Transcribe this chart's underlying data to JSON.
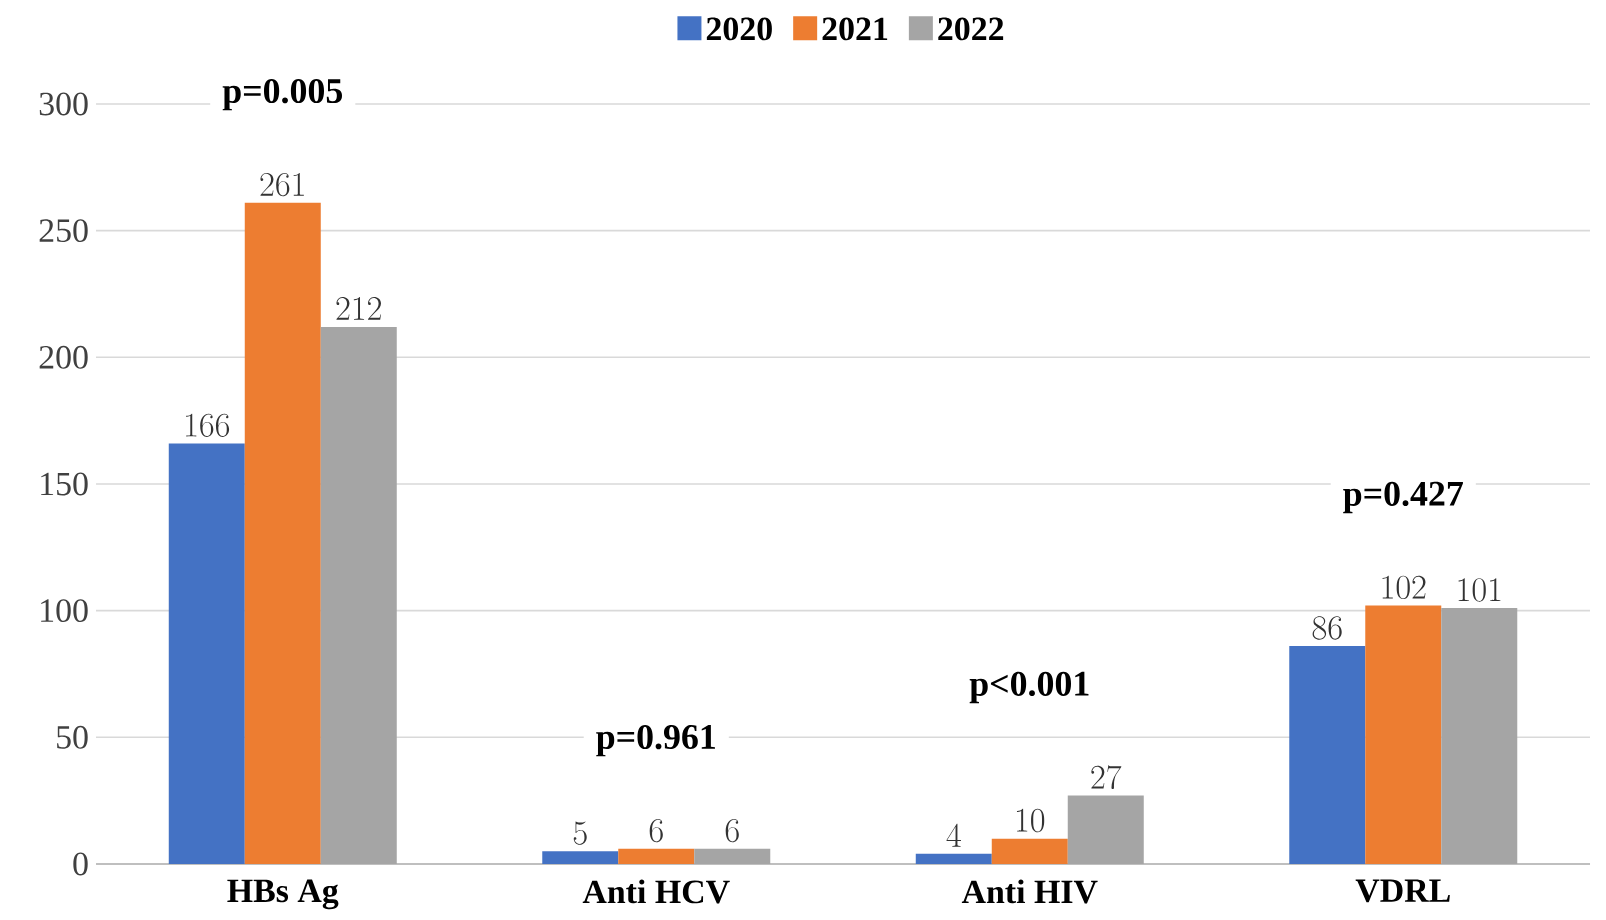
{
  "chart_data": {
    "type": "bar",
    "categories": [
      "HBs Ag",
      "Anti HCV",
      "Anti HIV",
      "VDRL"
    ],
    "series": [
      {
        "name": "2020",
        "color": "#4472c4",
        "values": [
          166,
          5,
          4,
          86
        ]
      },
      {
        "name": "2021",
        "color": "#ed7d31",
        "values": [
          261,
          6,
          10,
          102
        ]
      },
      {
        "name": "2022",
        "color": "#a5a5a5",
        "values": [
          212,
          6,
          27,
          101
        ]
      }
    ],
    "ylim": [
      0,
      300
    ],
    "yticks": [
      0,
      50,
      100,
      150,
      200,
      250,
      300
    ],
    "grid": "y",
    "legend": "top",
    "data_labels": true,
    "annotations": [
      "p=0.005",
      "p=0.961",
      "p<0.001",
      "p=0.427"
    ]
  }
}
